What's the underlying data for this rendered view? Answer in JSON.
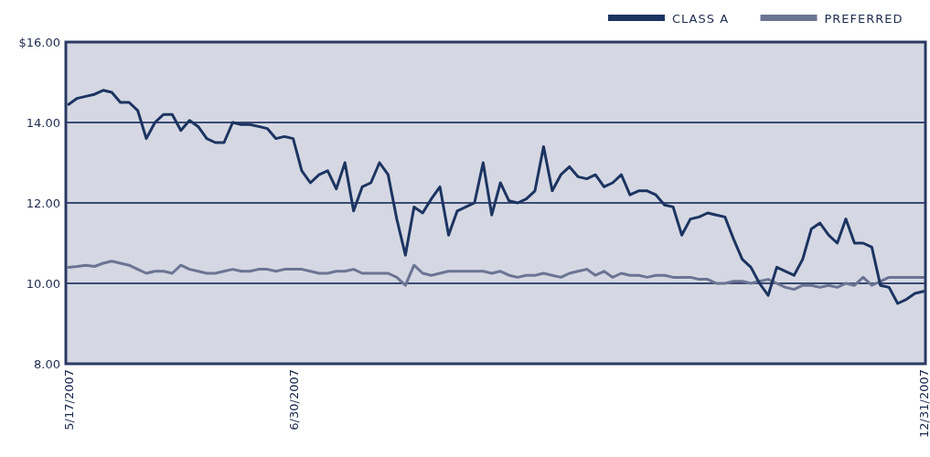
{
  "chart_data": {
    "type": "line",
    "categories": [
      "5/17/2007",
      null,
      null,
      null,
      null,
      null,
      null,
      null,
      null,
      null,
      null,
      null,
      null,
      null,
      null,
      null,
      null,
      null,
      null,
      null,
      null,
      null,
      null,
      null,
      null,
      null,
      "6/30/2007",
      null,
      null,
      null,
      null,
      null,
      null,
      null,
      null,
      null,
      null,
      null,
      null,
      null,
      null,
      null,
      null,
      null,
      null,
      null,
      null,
      null,
      null,
      null,
      null,
      null,
      null,
      null,
      null,
      null,
      null,
      null,
      null,
      null,
      null,
      null,
      null,
      null,
      null,
      null,
      null,
      null,
      null,
      null,
      null,
      null,
      null,
      null,
      null,
      null,
      null,
      null,
      null,
      null,
      null,
      null,
      null,
      null,
      null,
      null,
      null,
      null,
      null,
      null,
      null,
      null,
      null,
      null,
      null,
      null,
      null,
      null,
      null,
      "12/31/2007"
    ],
    "series": [
      {
        "name": "CLASS A",
        "color": "#1c3461",
        "values": [
          14.45,
          14.6,
          14.65,
          14.7,
          14.8,
          14.75,
          14.5,
          14.5,
          14.3,
          13.6,
          14.0,
          14.2,
          14.2,
          13.8,
          14.05,
          13.9,
          13.6,
          13.5,
          13.5,
          14.0,
          13.95,
          13.95,
          13.9,
          13.85,
          13.6,
          13.65,
          13.6,
          12.8,
          12.5,
          12.7,
          12.8,
          12.35,
          13.0,
          11.8,
          12.4,
          12.5,
          13.0,
          12.7,
          11.6,
          10.7,
          11.9,
          11.75,
          12.1,
          12.4,
          11.2,
          11.8,
          11.9,
          12.0,
          13.0,
          11.7,
          12.5,
          12.05,
          12.0,
          12.1,
          12.3,
          13.4,
          12.3,
          12.7,
          12.9,
          12.65,
          12.6,
          12.7,
          12.4,
          12.5,
          12.7,
          12.2,
          12.3,
          12.3,
          12.2,
          11.95,
          11.9,
          11.2,
          11.6,
          11.65,
          11.75,
          11.7,
          11.65,
          11.1,
          10.6,
          10.4,
          10.0,
          9.7,
          10.4,
          10.3,
          10.2,
          10.6,
          11.35,
          11.5,
          11.2,
          11.0,
          11.6,
          11.0,
          11.0,
          10.9,
          9.95,
          9.9,
          9.5,
          9.6,
          9.75,
          9.8
        ]
      },
      {
        "name": "PREFERRED",
        "color": "#6b7493",
        "values": [
          10.4,
          10.42,
          10.45,
          10.42,
          10.5,
          10.55,
          10.5,
          10.45,
          10.35,
          10.25,
          10.3,
          10.3,
          10.25,
          10.45,
          10.35,
          10.3,
          10.25,
          10.25,
          10.3,
          10.35,
          10.3,
          10.3,
          10.35,
          10.35,
          10.3,
          10.35,
          10.35,
          10.35,
          10.3,
          10.25,
          10.25,
          10.3,
          10.3,
          10.35,
          10.25,
          10.25,
          10.25,
          10.25,
          10.15,
          9.95,
          10.45,
          10.25,
          10.2,
          10.25,
          10.3,
          10.3,
          10.3,
          10.3,
          10.3,
          10.25,
          10.3,
          10.2,
          10.15,
          10.2,
          10.2,
          10.25,
          10.2,
          10.15,
          10.25,
          10.3,
          10.35,
          10.2,
          10.3,
          10.15,
          10.25,
          10.2,
          10.2,
          10.15,
          10.2,
          10.2,
          10.15,
          10.15,
          10.15,
          10.1,
          10.1,
          10.0,
          10.0,
          10.05,
          10.05,
          10.0,
          10.05,
          10.1,
          10.0,
          9.9,
          9.85,
          9.95,
          9.95,
          9.9,
          9.95,
          9.9,
          10.0,
          9.95,
          10.15,
          9.95,
          10.05,
          10.15,
          10.15,
          10.15,
          10.15,
          10.15
        ]
      }
    ],
    "ylim": [
      8,
      16
    ],
    "yticks": [
      {
        "value": 16,
        "label": "$16.00"
      },
      {
        "value": 14,
        "label": "14.00"
      },
      {
        "value": 12,
        "label": "12.00"
      },
      {
        "value": 10,
        "label": "10.00"
      },
      {
        "value": 8,
        "label": "8.00"
      }
    ],
    "grid": "y",
    "legend": "top right"
  }
}
